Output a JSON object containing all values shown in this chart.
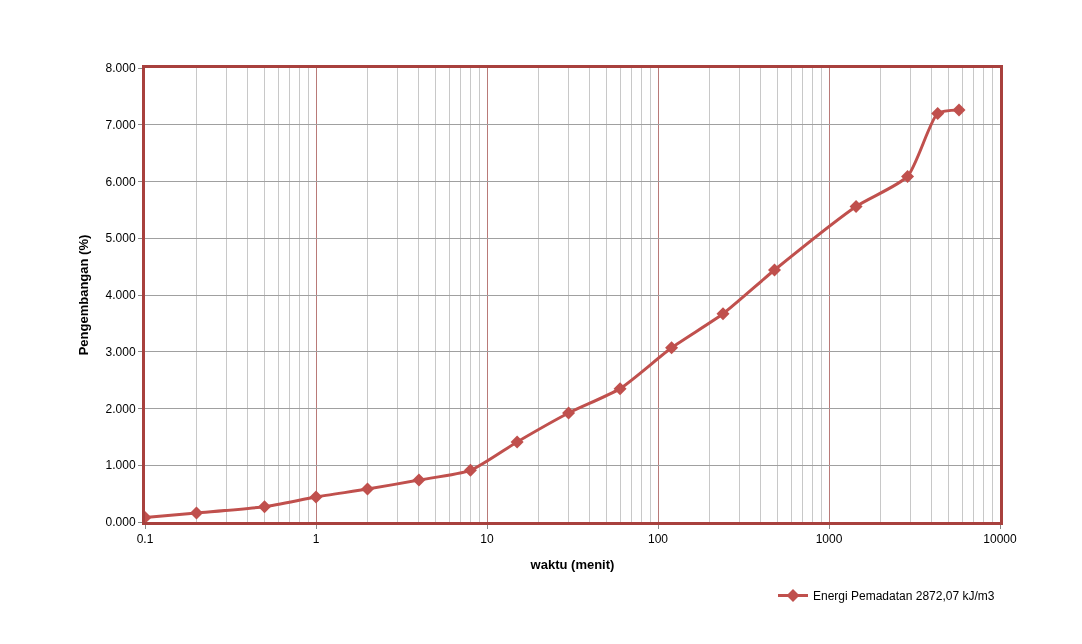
{
  "chart_data": {
    "type": "line",
    "xlabel": "waktu (menit)",
    "ylabel": "Pengembangan (%)",
    "x": [
      0.1,
      0.2,
      0.5,
      1,
      2,
      4,
      8,
      15,
      30,
      60,
      120,
      240,
      480,
      1440,
      2880,
      4320,
      5760
    ],
    "series": [
      {
        "name": "Energi Pemadatan 2872,07 kJ/m3",
        "color": "#c0504d",
        "values": [
          0.08,
          0.16,
          0.27,
          0.44,
          0.58,
          0.74,
          0.91,
          1.41,
          1.92,
          2.35,
          3.07,
          3.67,
          4.44,
          5.56,
          6.09,
          7.2,
          7.26
        ]
      }
    ],
    "log": "x",
    "xlim": [
      0.1,
      10000
    ],
    "xticks": [
      0.1,
      1,
      10,
      100,
      1000,
      10000
    ],
    "ylim": [
      0,
      8
    ],
    "yticks": [
      {
        "value": 0,
        "label": "0.000"
      },
      {
        "value": 1,
        "label": "1.000"
      },
      {
        "value": 2,
        "label": "2.000"
      },
      {
        "value": 3,
        "label": "3.000"
      },
      {
        "value": 4,
        "label": "4.000"
      },
      {
        "value": 5,
        "label": "5.000"
      },
      {
        "value": 6,
        "label": "6.000"
      },
      {
        "value": 7,
        "label": "7.000"
      },
      {
        "value": 8,
        "label": "8.000"
      }
    ],
    "grid": true,
    "legend": "bottom right",
    "marker": "diamond",
    "line_style": "solid"
  }
}
